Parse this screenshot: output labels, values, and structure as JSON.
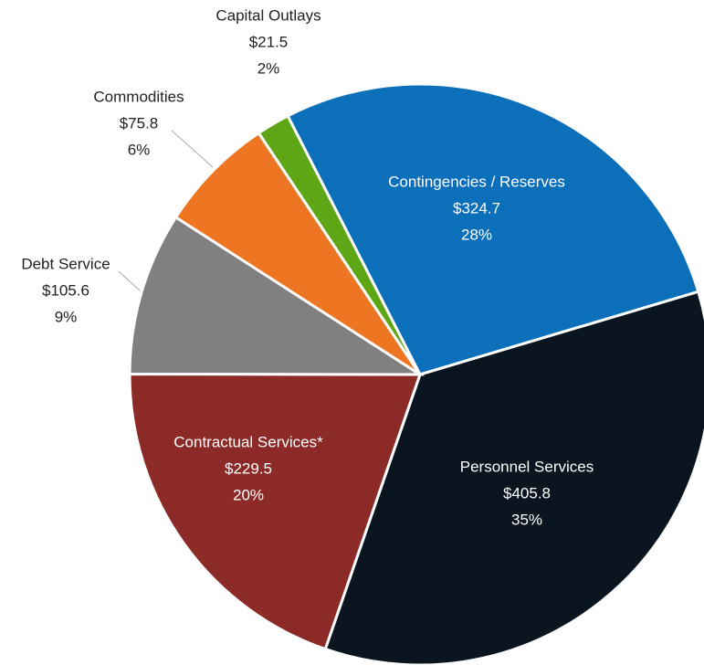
{
  "chart_data": {
    "type": "pie",
    "categories": [
      "Contingencies / Reserves",
      "Personnel Services",
      "Contractual Services*",
      "Debt Service",
      "Commodities",
      "Capital Outlays"
    ],
    "values": [
      324.7,
      405.8,
      229.5,
      105.6,
      75.8,
      21.5
    ],
    "value_labels": [
      "$324.7",
      "$405.8",
      "$229.5",
      "$105.6",
      "$75.8",
      "$21.5"
    ],
    "percentages": [
      28,
      35,
      20,
      9,
      6,
      2
    ],
    "percentage_labels": [
      "28%",
      "35%",
      "20%",
      "9%",
      "6%",
      "2%"
    ],
    "colors": [
      "#0b6fba",
      "#0b1520",
      "#8b2a27",
      "#808080",
      "#ee7622",
      "#5fa617"
    ]
  }
}
